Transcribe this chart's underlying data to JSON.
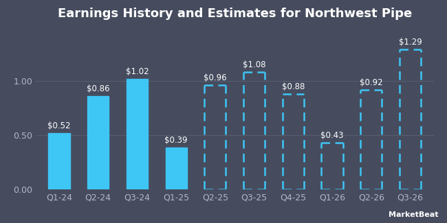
{
  "title": "Earnings History and Estimates for Northwest Pipe",
  "categories": [
    "Q1-24",
    "Q2-24",
    "Q3-24",
    "Q1-25",
    "Q2-25",
    "Q3-25",
    "Q4-25",
    "Q1-26",
    "Q2-26",
    "Q3-26"
  ],
  "values": [
    0.52,
    0.86,
    1.02,
    0.39,
    0.96,
    1.08,
    0.88,
    0.43,
    0.92,
    1.29
  ],
  "labels": [
    "$0.52",
    "$0.86",
    "$1.02",
    "$0.39",
    "$0.96",
    "$1.08",
    "$0.88",
    "$0.43",
    "$0.92",
    "$1.29"
  ],
  "is_estimate": [
    false,
    false,
    false,
    false,
    true,
    true,
    true,
    true,
    true,
    true
  ],
  "solid_color": "#3ec6f5",
  "dashed_color": "#3ec6f5",
  "background_color": "#464c5e",
  "plot_bg_color": "#464c5e",
  "title_color": "#ffffff",
  "label_color": "#ffffff",
  "tick_color": "#b0b8c8",
  "grid_color": "#555d70",
  "ylim": [
    0,
    1.5
  ],
  "yticks": [
    0.0,
    0.5,
    1.0
  ],
  "title_fontsize": 13,
  "label_fontsize": 8.5,
  "tick_fontsize": 9,
  "bar_width": 0.55
}
